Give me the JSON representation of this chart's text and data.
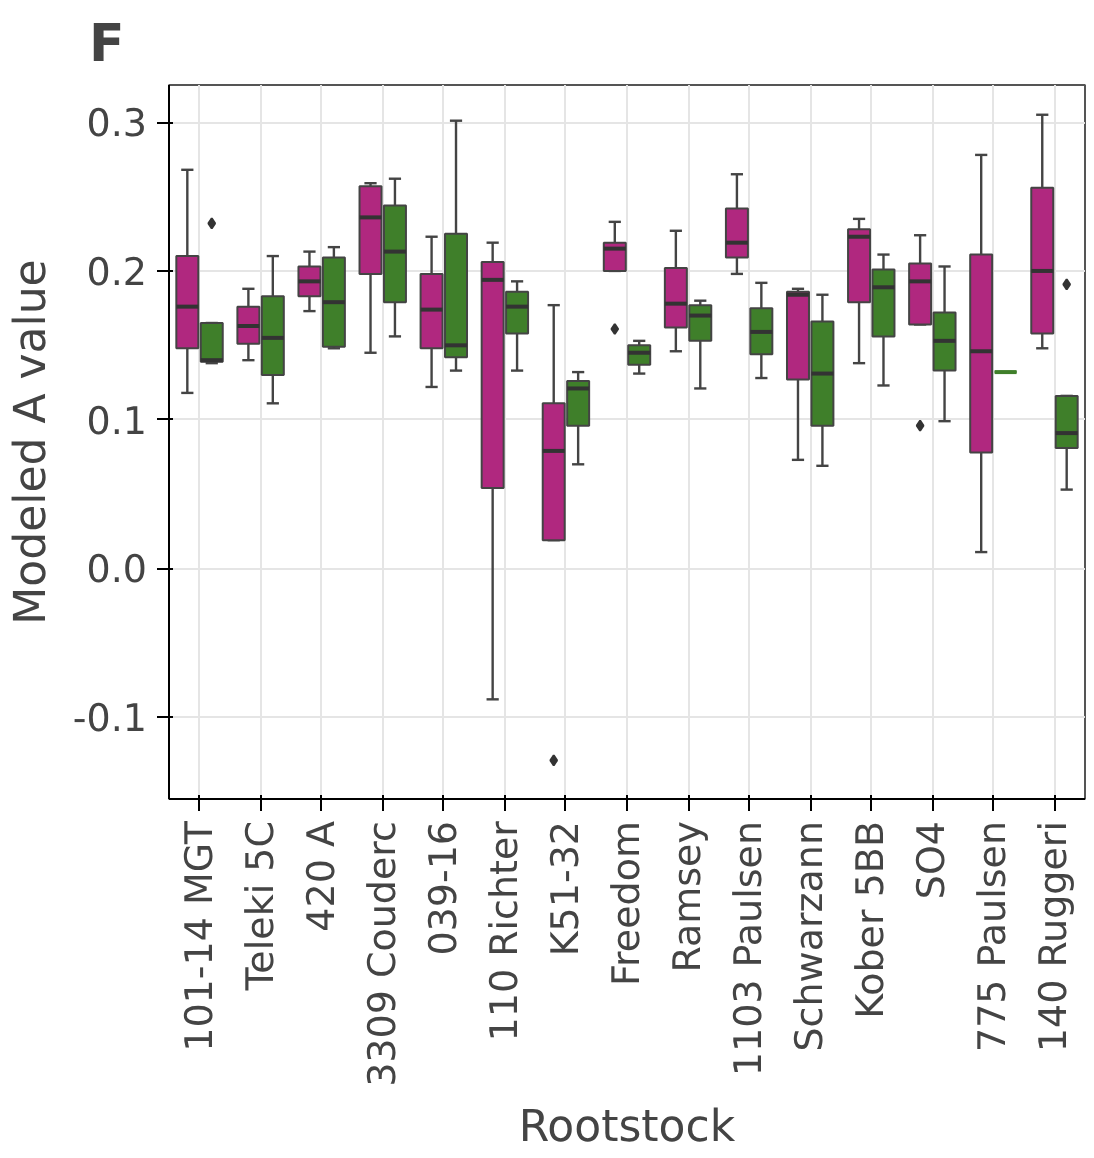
{
  "chart_data": {
    "type": "box",
    "title": "F",
    "xlabel": "Rootstock",
    "ylabel": "Modeled A value",
    "categories": [
      "101-14 MGT",
      "Teleki 5C",
      "420 A",
      "3309 Couderc",
      "039-16",
      "110 Richter",
      "K51-32",
      "Freedom",
      "Ramsey",
      "1103 Paulsen",
      "Schwarzann",
      "Kober 5BB",
      "SO4",
      "775 Paulsen",
      "140 Ruggeri"
    ],
    "ylim": [
      -0.155,
      0.325
    ],
    "yticks": [
      {
        "value": -0.1,
        "label": "-0.1"
      },
      {
        "value": 0.0,
        "label": "0.0"
      },
      {
        "value": 0.1,
        "label": "0.1"
      },
      {
        "value": 0.2,
        "label": "0.2"
      },
      {
        "value": 0.3,
        "label": "0.3"
      }
    ],
    "grid": true,
    "series": [
      {
        "color": "#b0287f",
        "boxes": [
          {
            "low": 0.118,
            "q1": 0.148,
            "median": 0.176,
            "q3": 0.21,
            "high": 0.268
          },
          {
            "low": 0.14,
            "q1": 0.151,
            "median": 0.163,
            "q3": 0.176,
            "high": 0.188
          },
          {
            "low": 0.173,
            "q1": 0.183,
            "median": 0.193,
            "q3": 0.203,
            "high": 0.213
          },
          {
            "low": 0.145,
            "q1": 0.198,
            "median": 0.236,
            "q3": 0.257,
            "high": 0.259
          },
          {
            "low": 0.122,
            "q1": 0.148,
            "median": 0.174,
            "q3": 0.198,
            "high": 0.223
          },
          {
            "low": -0.088,
            "q1": 0.054,
            "median": 0.194,
            "q3": 0.206,
            "high": 0.219
          },
          {
            "low": 0.019,
            "q1": 0.019,
            "median": 0.079,
            "q3": 0.111,
            "high": 0.177,
            "outliers": [
              -0.129
            ]
          },
          {
            "low": 0.2,
            "q1": 0.2,
            "median": 0.215,
            "q3": 0.219,
            "high": 0.233,
            "outliers": [
              0.161
            ]
          },
          {
            "low": 0.146,
            "q1": 0.162,
            "median": 0.178,
            "q3": 0.202,
            "high": 0.227
          },
          {
            "low": 0.198,
            "q1": 0.209,
            "median": 0.219,
            "q3": 0.242,
            "high": 0.265
          },
          {
            "low": 0.073,
            "q1": 0.127,
            "median": 0.184,
            "q3": 0.186,
            "high": 0.188
          },
          {
            "low": 0.138,
            "q1": 0.179,
            "median": 0.223,
            "q3": 0.228,
            "high": 0.235
          },
          {
            "low": 0.164,
            "q1": 0.164,
            "median": 0.193,
            "q3": 0.205,
            "high": 0.224,
            "outliers": [
              0.096
            ]
          },
          {
            "low": 0.011,
            "q1": 0.078,
            "median": 0.146,
            "q3": 0.211,
            "high": 0.278
          },
          {
            "low": 0.148,
            "q1": 0.158,
            "median": 0.2,
            "q3": 0.256,
            "high": 0.305
          }
        ]
      },
      {
        "color": "#3f7f2a",
        "boxes": [
          {
            "low": 0.138,
            "q1": 0.139,
            "median": 0.14,
            "q3": 0.165,
            "high": 0.165,
            "outliers": [
              0.232
            ]
          },
          {
            "low": 0.111,
            "q1": 0.13,
            "median": 0.155,
            "q3": 0.183,
            "high": 0.21
          },
          {
            "low": 0.148,
            "q1": 0.149,
            "median": 0.179,
            "q3": 0.209,
            "high": 0.216
          },
          {
            "low": 0.156,
            "q1": 0.179,
            "median": 0.213,
            "q3": 0.244,
            "high": 0.262
          },
          {
            "low": 0.133,
            "q1": 0.142,
            "median": 0.15,
            "q3": 0.225,
            "high": 0.301
          },
          {
            "low": 0.133,
            "q1": 0.158,
            "median": 0.176,
            "q3": 0.186,
            "high": 0.193
          },
          {
            "low": 0.07,
            "q1": 0.096,
            "median": 0.121,
            "q3": 0.126,
            "high": 0.132
          },
          {
            "low": 0.131,
            "q1": 0.137,
            "median": 0.145,
            "q3": 0.15,
            "high": 0.153
          },
          {
            "low": 0.121,
            "q1": 0.153,
            "median": 0.17,
            "q3": 0.177,
            "high": 0.18
          },
          {
            "low": 0.128,
            "q1": 0.144,
            "median": 0.159,
            "q3": 0.175,
            "high": 0.192
          },
          {
            "low": 0.069,
            "q1": 0.096,
            "median": 0.131,
            "q3": 0.166,
            "high": 0.184
          },
          {
            "low": 0.123,
            "q1": 0.156,
            "median": 0.189,
            "q3": 0.201,
            "high": 0.211
          },
          {
            "low": 0.099,
            "q1": 0.133,
            "median": 0.153,
            "q3": 0.172,
            "high": 0.203
          },
          {
            "low": 0.132,
            "q1": 0.132,
            "median": 0.132,
            "q3": 0.132,
            "high": 0.132
          },
          {
            "low": 0.053,
            "q1": 0.081,
            "median": 0.091,
            "q3": 0.116,
            "high": 0.116,
            "outliers": [
              0.191
            ]
          }
        ]
      }
    ]
  }
}
